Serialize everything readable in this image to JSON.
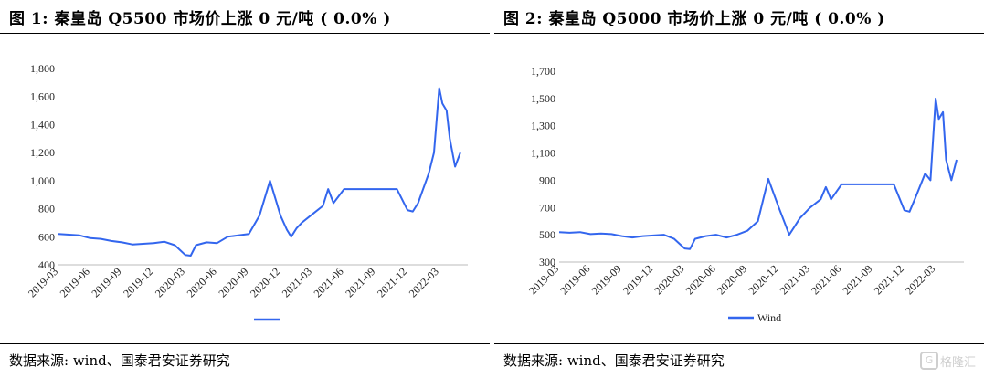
{
  "watermark": {
    "logo": "G",
    "text": "格隆汇"
  },
  "chart_data": [
    {
      "type": "line",
      "title": "图 1: 秦皇岛 Q5500 市场价上涨 0 元/吨 ( 0.0% )",
      "source": "数据来源: wind、国泰君安证券研究",
      "legend": "",
      "color": "#3366ee",
      "ylim": [
        400,
        1800
      ],
      "yticks": [
        400,
        600,
        800,
        1000,
        1200,
        1400,
        1600,
        1800
      ],
      "ytick_labels": [
        "400",
        "600",
        "800",
        "1,000",
        "1,200",
        "1,400",
        "1,600",
        "1,800"
      ],
      "xticks": [
        "2019-03",
        "2019-06",
        "2019-09",
        "2019-12",
        "2020-03",
        "2020-06",
        "2020-09",
        "2020-12",
        "2021-03",
        "2021-06",
        "2021-09",
        "2021-12",
        "2022-03"
      ],
      "x": [
        "2019-03",
        "2019-04",
        "2019-05",
        "2019-06",
        "2019-07",
        "2019-08",
        "2019-09",
        "2019-10",
        "2019-11",
        "2019-12",
        "2020-01",
        "2020-02",
        "2020-03",
        "2020-04",
        "2020-04b",
        "2020-05",
        "2020-06",
        "2020-07",
        "2020-08",
        "2020-09",
        "2020-10",
        "2020-11",
        "2020-12",
        "2020-12b",
        "2021-01",
        "2021-01b",
        "2021-02",
        "2021-03",
        "2021-04",
        "2021-05",
        "2021-05b",
        "2021-06",
        "2021-07",
        "2021-08",
        "2021-09",
        "2021-10",
        "2021-11",
        "2021-12",
        "2021-12b",
        "2022-01",
        "2022-01b",
        "2022-02",
        "2022-02b",
        "2022-03",
        "2022-03b",
        "2022-04",
        "2022-04b",
        "2022-05"
      ],
      "x_pos": [
        0,
        1,
        2,
        3,
        4,
        5,
        6,
        7,
        8,
        9,
        10,
        11,
        12,
        12.5,
        13,
        14,
        15,
        16,
        17,
        18,
        19,
        20,
        21,
        21.6,
        22,
        22.5,
        23,
        24,
        25,
        25.5,
        26,
        27,
        28,
        29,
        30,
        31,
        32,
        33,
        33.5,
        34,
        35,
        35.5,
        36,
        36.3,
        36.7,
        37,
        37.5,
        38
      ],
      "values": [
        620,
        615,
        610,
        590,
        585,
        570,
        560,
        545,
        550,
        555,
        565,
        540,
        470,
        465,
        540,
        560,
        555,
        600,
        610,
        620,
        750,
        1000,
        750,
        650,
        600,
        660,
        700,
        760,
        820,
        940,
        840,
        940,
        940,
        940,
        940,
        940,
        940,
        790,
        780,
        840,
        1050,
        1200,
        1660,
        1550,
        1500,
        1300,
        1100,
        1200
      ]
    },
    {
      "type": "line",
      "title": "图 2: 秦皇岛 Q5000 市场价上涨 0 元/吨 ( 0.0% )",
      "source": "数据来源: wind、国泰君安证券研究",
      "legend": "Wind",
      "color": "#3366ee",
      "ylim": [
        300,
        1700
      ],
      "yticks": [
        300,
        500,
        700,
        900,
        1100,
        1300,
        1500,
        1700
      ],
      "ytick_labels": [
        "300",
        "500",
        "700",
        "900",
        "1,100",
        "1,300",
        "1,500",
        "1,700"
      ],
      "xticks": [
        "2019-03",
        "2019-06",
        "2019-09",
        "2019-12",
        "2020-03",
        "2020-06",
        "2020-09",
        "2020-12",
        "2021-03",
        "2021-06",
        "2021-09",
        "2021-12",
        "2022-03"
      ],
      "x": [
        "2019-03",
        "2019-04",
        "2019-05",
        "2019-06",
        "2019-07",
        "2019-08",
        "2019-09",
        "2019-10",
        "2019-11",
        "2019-12",
        "2020-01",
        "2020-02",
        "2020-03",
        "2020-04",
        "2020-04b",
        "2020-05",
        "2020-06",
        "2020-07",
        "2020-08",
        "2020-09",
        "2020-10",
        "2020-11",
        "2020-12",
        "2020-12b",
        "2021-01",
        "2021-01b",
        "2021-02",
        "2021-03",
        "2021-04",
        "2021-05",
        "2021-05b",
        "2021-06",
        "2021-07",
        "2021-08",
        "2021-09",
        "2021-10",
        "2021-11",
        "2021-12",
        "2021-12b",
        "2022-01",
        "2022-01b",
        "2022-02",
        "2022-02b",
        "2022-03",
        "2022-03b",
        "2022-04",
        "2022-04b",
        "2022-05"
      ],
      "x_pos": [
        0,
        1,
        2,
        3,
        4,
        5,
        6,
        7,
        8,
        9,
        10,
        11,
        12,
        12.5,
        13,
        14,
        15,
        16,
        17,
        18,
        19,
        20,
        21,
        21.6,
        22,
        22.5,
        23,
        24,
        25,
        25.5,
        26,
        27,
        28,
        29,
        30,
        31,
        32,
        33,
        33.5,
        34,
        35,
        35.5,
        36,
        36.3,
        36.7,
        37,
        37.5,
        38
      ],
      "values": [
        520,
        515,
        520,
        505,
        510,
        505,
        490,
        480,
        490,
        495,
        500,
        470,
        400,
        395,
        470,
        490,
        500,
        480,
        500,
        530,
        600,
        910,
        700,
        580,
        500,
        560,
        620,
        700,
        760,
        850,
        760,
        870,
        870,
        870,
        870,
        870,
        870,
        680,
        670,
        760,
        950,
        900,
        1500,
        1350,
        1400,
        1050,
        900,
        1050
      ]
    }
  ]
}
